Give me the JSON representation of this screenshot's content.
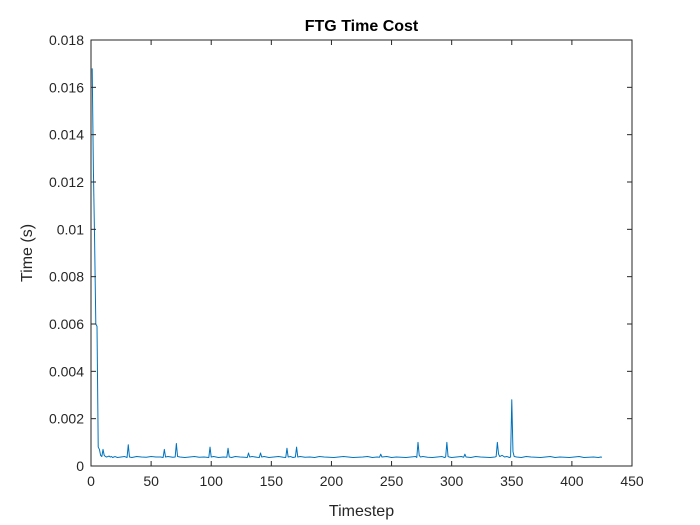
{
  "chart_data": {
    "type": "line",
    "title": "FTG Time Cost",
    "xlabel": "Timestep",
    "ylabel": "Time (s)",
    "xlim": [
      0,
      450
    ],
    "ylim": [
      0,
      0.018
    ],
    "x_ticks": [
      0,
      50,
      100,
      150,
      200,
      250,
      300,
      350,
      400,
      450
    ],
    "y_ticks": [
      0,
      0.002,
      0.004,
      0.006,
      0.008,
      0.01,
      0.012,
      0.014,
      0.016,
      0.018
    ],
    "x_tick_labels": [
      "0",
      "50",
      "100",
      "150",
      "200",
      "250",
      "300",
      "350",
      "400",
      "450"
    ],
    "y_tick_labels": [
      "0",
      "0.002",
      "0.004",
      "0.006",
      "0.008",
      "0.01",
      "0.012",
      "0.014",
      "0.016",
      "0.018"
    ],
    "grid": false,
    "series": [
      {
        "color": "#0072BD",
        "x": [
          1,
          2,
          3,
          4,
          5,
          6,
          7,
          8,
          9,
          10,
          11,
          12,
          13,
          14,
          15,
          16,
          17,
          18,
          19,
          20,
          22,
          25,
          28,
          30,
          31,
          32,
          34,
          38,
          42,
          46,
          50,
          54,
          58,
          60,
          61,
          62,
          64,
          68,
          70,
          71,
          72,
          74,
          78,
          82,
          86,
          90,
          94,
          98,
          99,
          100,
          102,
          106,
          110,
          113,
          114,
          115,
          117,
          120,
          124,
          128,
          130,
          131,
          132,
          134,
          138,
          140,
          141,
          142,
          144,
          148,
          152,
          156,
          160,
          162,
          163,
          164,
          166,
          168,
          170,
          171,
          172,
          174,
          178,
          182,
          186,
          190,
          194,
          198,
          202,
          206,
          210,
          214,
          218,
          222,
          226,
          230,
          234,
          238,
          240,
          241,
          242,
          246,
          250,
          254,
          258,
          262,
          266,
          270,
          271,
          272,
          273,
          274,
          276,
          280,
          284,
          288,
          292,
          294,
          295,
          296,
          297,
          298,
          300,
          304,
          308,
          310,
          311,
          312,
          316,
          320,
          324,
          328,
          332,
          336,
          337,
          338,
          339,
          340,
          342,
          344,
          346,
          348,
          349,
          350,
          351,
          352,
          354,
          358,
          362,
          366,
          370,
          374,
          378,
          382,
          386,
          390,
          394,
          398,
          402,
          406,
          410,
          414,
          418,
          422,
          424,
          425
        ],
        "y": [
          0.0168,
          0.0125,
          0.0095,
          0.006,
          0.0059,
          0.0008,
          0.0007,
          0.00045,
          0.0004,
          0.0007,
          0.00045,
          0.0004,
          0.00038,
          0.0004,
          0.00042,
          0.00038,
          0.0004,
          0.00036,
          0.00038,
          0.0004,
          0.00036,
          0.00038,
          0.0004,
          0.00036,
          0.0009,
          0.00038,
          0.00036,
          0.0004,
          0.00038,
          0.00037,
          0.0004,
          0.00038,
          0.00038,
          0.00036,
          0.0007,
          0.00038,
          0.0004,
          0.00037,
          0.00038,
          0.00095,
          0.0004,
          0.00038,
          0.00036,
          0.00038,
          0.0004,
          0.00037,
          0.00038,
          0.00036,
          0.0008,
          0.00038,
          0.0004,
          0.00036,
          0.00038,
          0.00037,
          0.00075,
          0.00038,
          0.00036,
          0.0004,
          0.00038,
          0.00037,
          0.00036,
          0.00055,
          0.00038,
          0.0004,
          0.00037,
          0.00036,
          0.00055,
          0.00038,
          0.0004,
          0.00036,
          0.00038,
          0.0004,
          0.00037,
          0.00036,
          0.00075,
          0.00038,
          0.0004,
          0.00036,
          0.00038,
          0.0008,
          0.00038,
          0.0004,
          0.00037,
          0.00038,
          0.00036,
          0.0004,
          0.00038,
          0.00037,
          0.00036,
          0.00038,
          0.0004,
          0.00038,
          0.00036,
          0.00037,
          0.00038,
          0.0004,
          0.00036,
          0.00038,
          0.00037,
          0.0005,
          0.00038,
          0.0004,
          0.00036,
          0.00038,
          0.00037,
          0.00036,
          0.00038,
          0.0004,
          0.00036,
          0.001,
          0.00045,
          0.00038,
          0.0004,
          0.00037,
          0.00036,
          0.00038,
          0.0004,
          0.00036,
          0.00038,
          0.001,
          0.0004,
          0.00038,
          0.00036,
          0.00038,
          0.0004,
          0.00037,
          0.0005,
          0.00038,
          0.00036,
          0.0004,
          0.00038,
          0.00037,
          0.00036,
          0.00038,
          0.0004,
          0.001,
          0.0005,
          0.0004,
          0.00045,
          0.00038,
          0.0004,
          0.00036,
          0.00038,
          0.0028,
          0.0006,
          0.0004,
          0.00038,
          0.00036,
          0.0004,
          0.00038,
          0.00037,
          0.00036,
          0.00038,
          0.0004,
          0.00036,
          0.00038,
          0.00037,
          0.00036,
          0.00038,
          0.0004,
          0.00036,
          0.00037,
          0.00038,
          0.00036,
          0.00038,
          0.00037
        ]
      }
    ]
  }
}
